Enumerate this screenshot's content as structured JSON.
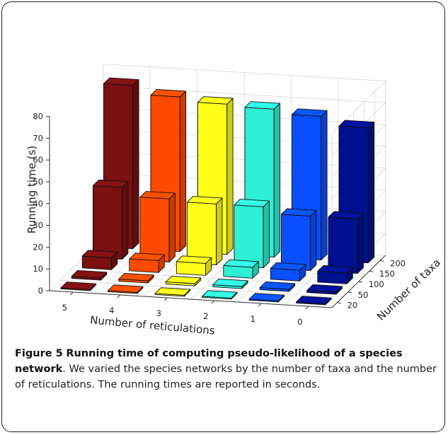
{
  "chart_data": {
    "type": "bar",
    "style": "3d",
    "ylabel": "Running time (s)",
    "xlabel": "Number of reticulations",
    "depth_label": "Number of taxa",
    "reticulations": [
      "5",
      "4",
      "3",
      "2",
      "1",
      "0"
    ],
    "taxa": [
      "20",
      "50",
      "100",
      "150",
      "200"
    ],
    "zticks": [
      "0",
      "10",
      "20",
      "30",
      "40",
      "50",
      "60",
      "70",
      "80"
    ],
    "zlim": [
      0,
      80
    ],
    "grid": true,
    "colors": [
      "#7a1010",
      "#ff4a00",
      "#ffff1a",
      "#2ef0d4",
      "#0a4fff",
      "#001090"
    ],
    "values": [
      [
        0.5,
        1.0,
        5.5,
        33.0,
        75.0
      ],
      [
        0.5,
        1.0,
        5.5,
        29.0,
        71.0
      ],
      [
        0.5,
        1.0,
        5.5,
        28.0,
        69.0
      ],
      [
        0.5,
        1.0,
        5.0,
        28.0,
        68.0
      ],
      [
        0.5,
        1.0,
        5.0,
        25.0,
        66.0
      ],
      [
        0.5,
        1.0,
        5.0,
        25.0,
        62.0
      ]
    ]
  },
  "caption": {
    "figure_label": "Figure 5",
    "title": "Running time of computing pseudo-likelihood of a species network",
    "body": ". We varied the species networks by the number of taxa and the number of reticulations. The running times are reported in seconds."
  }
}
